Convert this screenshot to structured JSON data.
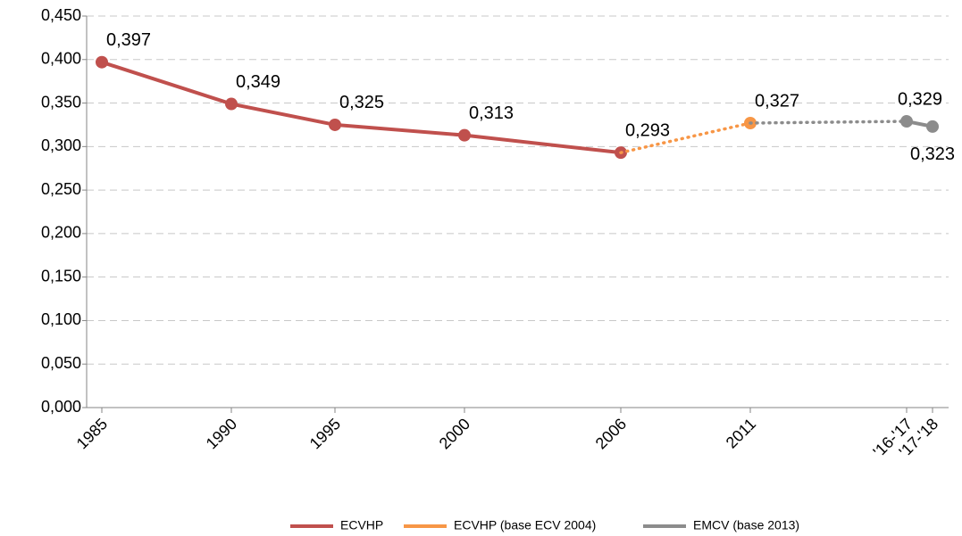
{
  "chart_data": {
    "type": "line",
    "categories": [
      "1985",
      "1990",
      "1995",
      "2000",
      "2006",
      "2011",
      "'16-'17",
      "'17-'18"
    ],
    "series": [
      {
        "name": "ECVHP",
        "color": "#c0504d",
        "values": [
          0.397,
          0.349,
          0.325,
          0.313,
          0.293,
          null,
          null,
          null
        ],
        "value_labels": [
          "0,397",
          "0,349",
          "0,325",
          "0,313",
          "0,293",
          null,
          null,
          null
        ]
      },
      {
        "name": "ECVHP (base ECV 2004)",
        "color": "#f79646",
        "values": [
          null,
          null,
          null,
          null,
          null,
          0.327,
          null,
          null
        ],
        "value_labels": [
          null,
          null,
          null,
          null,
          null,
          "0,327",
          null,
          null
        ]
      },
      {
        "name": "EMCV (base 2013)",
        "color": "#8c8c8c",
        "values": [
          null,
          null,
          null,
          null,
          null,
          null,
          0.329,
          0.323
        ],
        "value_labels": [
          null,
          null,
          null,
          null,
          null,
          null,
          "0,329",
          "0,323"
        ]
      }
    ],
    "ylim": [
      0,
      0.45
    ],
    "yticks": [
      {
        "value": 0,
        "label": "0,000"
      },
      {
        "value": 0.05,
        "label": "0,050"
      },
      {
        "value": 0.1,
        "label": "0,100"
      },
      {
        "value": 0.15,
        "label": "0,150"
      },
      {
        "value": 0.2,
        "label": "0,200"
      },
      {
        "value": 0.25,
        "label": "0,250"
      },
      {
        "value": 0.3,
        "label": "0,300"
      },
      {
        "value": 0.35,
        "label": "0,350"
      },
      {
        "value": 0.4,
        "label": "0,400"
      },
      {
        "value": 0.45,
        "label": "0,450"
      }
    ],
    "grid": true,
    "connector": "dotted",
    "legend": "bottom"
  }
}
